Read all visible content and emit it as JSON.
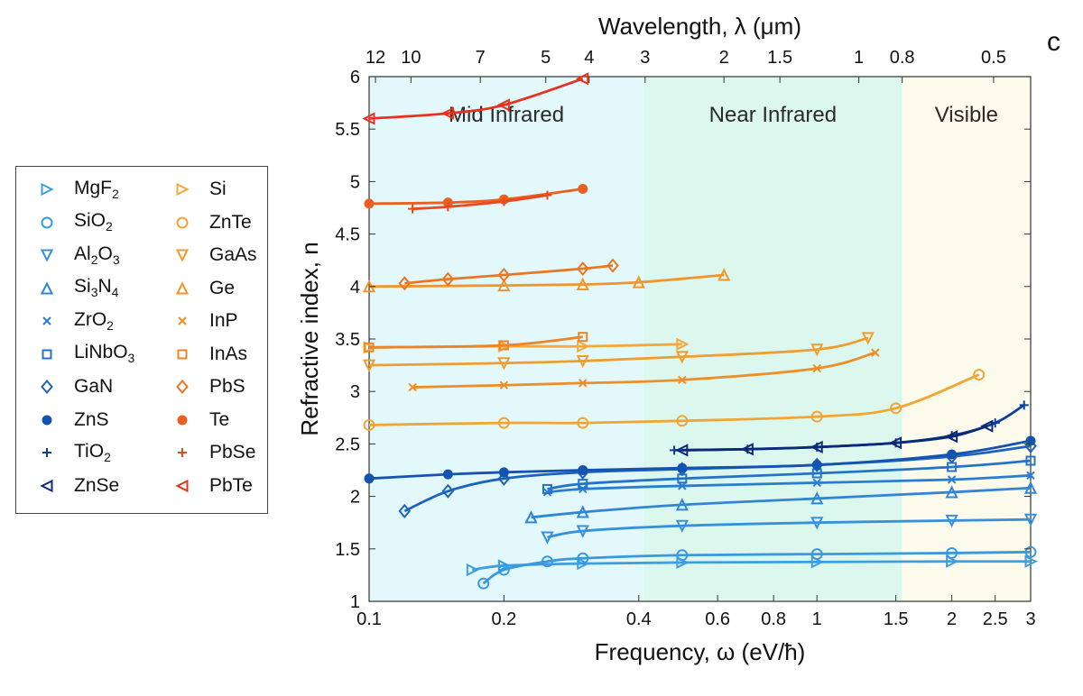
{
  "chart_data": {
    "type": "line",
    "panel_letter": "c",
    "xlabel": "Frequency, ω (eV/ħ)",
    "x_top_label": "Wavelength, λ (μm)",
    "ylabel": "Refractive index, n",
    "xscale": "log",
    "xlim": [
      0.1,
      3
    ],
    "ylim": [
      1,
      6
    ],
    "x_ticks": [
      0.1,
      0.2,
      0.4,
      0.6,
      0.8,
      1,
      1.5,
      2,
      2.5,
      3
    ],
    "x_tick_labels": [
      "0.1",
      "0.2",
      "0.4",
      "0.6",
      "0.8",
      "1",
      "1.5",
      "2",
      "2.5",
      "3"
    ],
    "y_ticks": [
      1,
      1.5,
      2,
      2.5,
      3,
      3.5,
      4,
      4.5,
      5,
      5.5,
      6
    ],
    "y_tick_labels": [
      "1",
      "1.5",
      "2",
      "2.5",
      "3",
      "3.5",
      "4",
      "4.5",
      "5",
      "5.5",
      "6"
    ],
    "top_ticks_um": [
      12,
      10,
      7,
      5,
      4,
      3,
      2,
      1.5,
      1,
      0.8,
      0.5
    ],
    "top_tick_labels": [
      "12",
      "10",
      "7",
      "5",
      "4",
      "3",
      "2",
      "1.5",
      "1",
      "0.8",
      "0.5"
    ],
    "regions": [
      {
        "label": "Mid Infrared",
        "x_range": [
          0.1,
          0.41
        ],
        "color": "#e2f8fb"
      },
      {
        "label": "Near Infrared",
        "x_range": [
          0.41,
          1.55
        ],
        "color": "#dcf8ee"
      },
      {
        "label": "Visible",
        "x_range": [
          1.55,
          3
        ],
        "color": "#fcfaea"
      }
    ],
    "legend": [
      {
        "base": "MgF",
        "sub": "2",
        "marker": "tri-right",
        "color": "#3d9ee0"
      },
      {
        "base": "SiO",
        "sub": "2",
        "marker": "circle",
        "color": "#3a98de"
      },
      {
        "base": "Al",
        "sub": "2",
        "base2": "O",
        "sub2": "3",
        "marker": "tri-down",
        "color": "#3790db"
      },
      {
        "base": "Si",
        "sub": "3",
        "base2": "N",
        "sub2": "4",
        "marker": "tri-up",
        "color": "#2f86d6"
      },
      {
        "base": "ZrO",
        "sub": "2",
        "marker": "x",
        "color": "#2a7dd0"
      },
      {
        "base": "LiNbO",
        "sub": "3",
        "marker": "square",
        "color": "#2473c9"
      },
      {
        "base": "GaN",
        "sub": "",
        "marker": "diamond",
        "color": "#1c63bd"
      },
      {
        "base": "ZnS",
        "sub": "",
        "marker": "dot",
        "color": "#1553b0"
      },
      {
        "base": "TiO",
        "sub": "2",
        "marker": "plus",
        "color": "#0b3f98"
      },
      {
        "base": "ZnSe",
        "sub": "",
        "marker": "tri-left",
        "color": "#0a2a78"
      },
      {
        "base": "Si",
        "sub": "",
        "marker": "tri-right",
        "color": "#f2a93b"
      },
      {
        "base": "ZnTe",
        "sub": "",
        "marker": "circle",
        "color": "#f0a535"
      },
      {
        "base": "GaAs",
        "sub": "",
        "marker": "tri-down",
        "color": "#ef9d30"
      },
      {
        "base": "Ge",
        "sub": "",
        "marker": "tri-up",
        "color": "#ee962c"
      },
      {
        "base": "InP",
        "sub": "",
        "marker": "x",
        "color": "#ec8f28"
      },
      {
        "base": "InAs",
        "sub": "",
        "marker": "square",
        "color": "#eb8525"
      },
      {
        "base": "PbS",
        "sub": "",
        "marker": "diamond",
        "color": "#e97722"
      },
      {
        "base": "Te",
        "sub": "",
        "marker": "dot",
        "color": "#e9601f"
      },
      {
        "base": "PbSe",
        "sub": "",
        "marker": "plus",
        "color": "#e84a1e"
      },
      {
        "base": "PbTe",
        "sub": "",
        "marker": "tri-left",
        "color": "#e8321d"
      }
    ],
    "series": [
      {
        "x": [
          0.17,
          0.2,
          0.3,
          0.5,
          1,
          2,
          3
        ],
        "y": [
          1.3,
          1.34,
          1.36,
          1.37,
          1.375,
          1.38,
          1.38
        ]
      },
      {
        "x": [
          0.18,
          0.2,
          0.25,
          0.3,
          0.5,
          1,
          2,
          3
        ],
        "y": [
          1.17,
          1.3,
          1.38,
          1.41,
          1.44,
          1.45,
          1.46,
          1.47
        ]
      },
      {
        "x": [
          0.25,
          0.3,
          0.5,
          1,
          2,
          3
        ],
        "y": [
          1.61,
          1.67,
          1.72,
          1.75,
          1.77,
          1.78
        ]
      },
      {
        "x": [
          0.23,
          0.3,
          0.5,
          1,
          2,
          3
        ],
        "y": [
          1.8,
          1.85,
          1.92,
          1.98,
          2.04,
          2.08
        ]
      },
      {
        "x": [
          0.25,
          0.3,
          0.5,
          1,
          2,
          3
        ],
        "y": [
          2.04,
          2.07,
          2.1,
          2.13,
          2.16,
          2.2
        ]
      },
      {
        "x": [
          0.25,
          0.3,
          0.5,
          1,
          2,
          3
        ],
        "y": [
          2.07,
          2.12,
          2.17,
          2.22,
          2.28,
          2.34
        ]
      },
      {
        "x": [
          0.12,
          0.15,
          0.2,
          0.3,
          0.5,
          1,
          2,
          3
        ],
        "y": [
          1.86,
          2.05,
          2.17,
          2.23,
          2.26,
          2.3,
          2.38,
          2.48
        ]
      },
      {
        "x": [
          0.1,
          0.15,
          0.2,
          0.3,
          0.5,
          1,
          2,
          3
        ],
        "y": [
          2.17,
          2.21,
          2.23,
          2.25,
          2.27,
          2.3,
          2.4,
          2.53
        ]
      },
      {
        "x": [
          0.48,
          0.7,
          1,
          1.5,
          2,
          2.5,
          2.9
        ],
        "y": [
          2.44,
          2.45,
          2.47,
          2.51,
          2.58,
          2.7,
          2.87
        ]
      },
      {
        "x": [
          0.5,
          0.7,
          1,
          1.5,
          2,
          2.4
        ],
        "y": [
          2.44,
          2.45,
          2.47,
          2.51,
          2.57,
          2.67
        ]
      },
      {
        "x": [
          0.1,
          0.2,
          0.3,
          0.5
        ],
        "y": [
          3.42,
          3.43,
          3.43,
          3.45
        ]
      },
      {
        "x": [
          0.1,
          0.2,
          0.3,
          0.5,
          1,
          1.5,
          2.3
        ],
        "y": [
          2.68,
          2.7,
          2.7,
          2.72,
          2.76,
          2.84,
          3.16
        ]
      },
      {
        "x": [
          0.1,
          0.2,
          0.3,
          0.5,
          1,
          1.3
        ],
        "y": [
          3.25,
          3.27,
          3.29,
          3.33,
          3.4,
          3.51
        ]
      },
      {
        "x": [
          0.1,
          0.2,
          0.3,
          0.4,
          0.62
        ],
        "y": [
          4.0,
          4.01,
          4.02,
          4.04,
          4.11
        ]
      },
      {
        "x": [
          0.125,
          0.2,
          0.3,
          0.5,
          1,
          1.35
        ],
        "y": [
          3.04,
          3.06,
          3.08,
          3.11,
          3.22,
          3.37
        ]
      },
      {
        "x": [
          0.1,
          0.2,
          0.3
        ],
        "y": [
          3.42,
          3.44,
          3.52
        ]
      },
      {
        "x": [
          0.12,
          0.15,
          0.2,
          0.3,
          0.35
        ],
        "y": [
          4.03,
          4.07,
          4.11,
          4.17,
          4.2
        ]
      },
      {
        "x": [
          0.1,
          0.15,
          0.2,
          0.3
        ],
        "y": [
          4.79,
          4.8,
          4.83,
          4.93
        ]
      },
      {
        "x": [
          0.125,
          0.15,
          0.2,
          0.25
        ],
        "y": [
          4.74,
          4.76,
          4.81,
          4.87
        ]
      },
      {
        "x": [
          0.1,
          0.15,
          0.2,
          0.3
        ],
        "y": [
          5.6,
          5.65,
          5.73,
          5.98
        ]
      }
    ]
  }
}
